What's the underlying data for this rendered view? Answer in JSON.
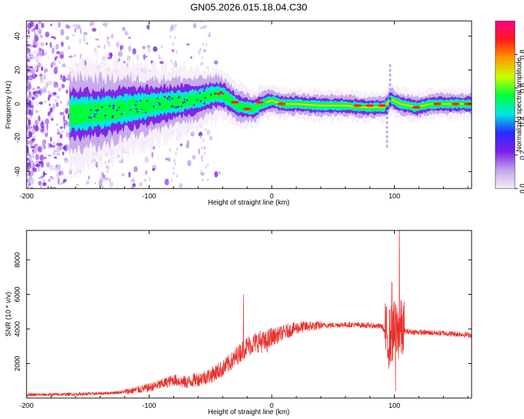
{
  "chart_data": [
    {
      "type": "heatmap",
      "title": "GN05.2026.015.18.04.C30",
      "xlabel": "Height of straight line (km)",
      "ylabel": "Frequency (Hz)",
      "xlim": [
        -200,
        163
      ],
      "ylim": [
        -50,
        49
      ],
      "xticks": [
        -200,
        -100,
        0,
        100
      ],
      "yticks": [
        -40,
        -20,
        0,
        20,
        40
      ],
      "colorbar": {
        "label": "Normalized spectral amplitude",
        "range": [
          0,
          1
        ],
        "ticks": [
          0.0,
          0.2,
          0.4,
          0.6,
          0.8
        ],
        "tick_labels": [
          "0.0",
          "0.2",
          "0.4",
          "0.6",
          "0.8"
        ],
        "colors": [
          "#f6eef8",
          "#c2a3ea",
          "#7b1fe8",
          "#2b2bff",
          "#00e6e6",
          "#00ff38",
          "#c9ff00",
          "#ff9900",
          "#ff1a1a",
          "#ff0090"
        ]
      },
      "ridge": {
        "description_points_x": [
          -160,
          -140,
          -120,
          -100,
          -80,
          -60,
          -50,
          -42,
          -35,
          -28,
          -22,
          -15,
          -8,
          0,
          8,
          20,
          40,
          60,
          75,
          85,
          92,
          97,
          105,
          118,
          130,
          145,
          163
        ],
        "description_points_y": [
          -6,
          -5,
          -3,
          -1,
          1,
          3,
          5,
          6,
          3,
          -1,
          -2,
          -3,
          0,
          2,
          0,
          0,
          -1,
          -1,
          -2,
          -2,
          -2,
          3,
          0,
          -2,
          0,
          0,
          0
        ]
      }
    },
    {
      "type": "line",
      "xlabel": "Height of straight line (km)",
      "ylabel": "SNR (10 * v/v)",
      "xlim": [
        -200,
        163
      ],
      "ylim": [
        0,
        9700
      ],
      "xticks": [
        -200,
        -100,
        0,
        100
      ],
      "yticks": [
        2000,
        4000,
        6000,
        8000
      ],
      "color": "#e8302c",
      "series": [
        {
          "name": "SNR",
          "x": [
            -200,
            -180,
            -160,
            -140,
            -120,
            -100,
            -90,
            -80,
            -70,
            -60,
            -50,
            -40,
            -30,
            -25,
            -20,
            -15,
            -10,
            -5,
            0,
            10,
            20,
            30,
            40,
            60,
            80,
            90,
            95,
            100,
            105,
            110,
            120,
            140,
            163
          ],
          "y": [
            180,
            200,
            220,
            260,
            350,
            600,
            800,
            1050,
            900,
            1100,
            1300,
            1700,
            2300,
            2700,
            3000,
            3150,
            3300,
            3200,
            3500,
            3800,
            4050,
            4150,
            4200,
            4250,
            4200,
            4150,
            3400,
            3900,
            3950,
            3850,
            3800,
            3750,
            3650
          ]
        }
      ],
      "spikes": [
        {
          "x": -23,
          "y": 6000
        },
        {
          "x": 98,
          "y": 6700
        },
        {
          "x": 101,
          "y": 400
        },
        {
          "x": 104,
          "y": 9700
        }
      ]
    }
  ]
}
